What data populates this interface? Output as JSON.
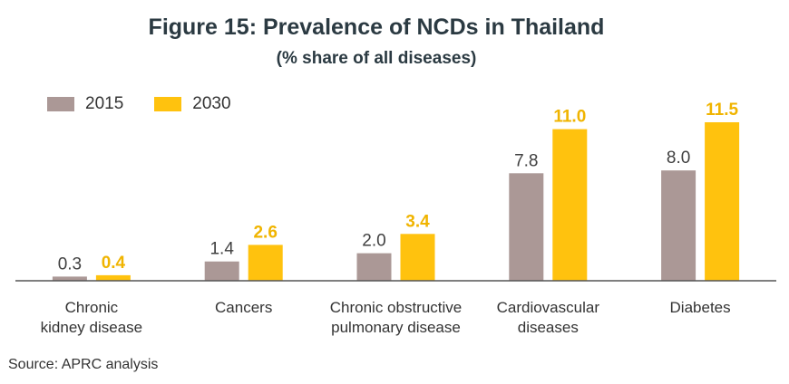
{
  "title": "Figure 15: Prevalence of NCDs in Thailand",
  "subtitle": "(% share of all diseases)",
  "source": "Source: APRC analysis",
  "colors": {
    "series_2015": "#ab9896",
    "series_2030": "#ffc20e",
    "label_2015": "#404040",
    "label_2030": "#f0b400",
    "axis": "#555555",
    "text": "#333333"
  },
  "legend": {
    "items": [
      {
        "label": "2015"
      },
      {
        "label": "2030"
      }
    ]
  },
  "chart_data": {
    "type": "bar",
    "title": "Figure 15: Prevalence of NCDs in Thailand",
    "subtitle": "(% share of all diseases)",
    "xlabel": "",
    "ylabel": "",
    "ylim": [
      0,
      12
    ],
    "legend_position": "top-left",
    "grid": false,
    "categories": [
      [
        "Chronic",
        "kidney disease"
      ],
      [
        "Cancers"
      ],
      [
        "Chronic obstructive",
        "pulmonary disease"
      ],
      [
        "Cardiovascular",
        "diseases"
      ],
      [
        "Diabetes"
      ]
    ],
    "series": [
      {
        "name": "2015",
        "values": [
          0.3,
          1.4,
          2.0,
          7.8,
          8.0
        ],
        "labels": [
          "0.3",
          "1.4",
          "2.0",
          "7.8",
          "8.0"
        ]
      },
      {
        "name": "2030",
        "values": [
          0.4,
          2.6,
          3.4,
          11.0,
          11.5
        ],
        "labels": [
          "0.4",
          "2.6",
          "3.4",
          "11.0",
          "11.5"
        ]
      }
    ]
  }
}
